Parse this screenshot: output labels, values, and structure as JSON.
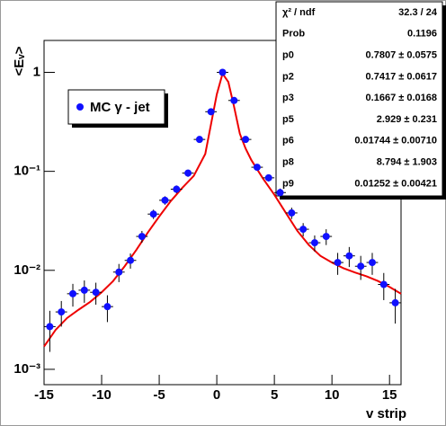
{
  "chart_data": {
    "type": "scatter",
    "xlabel": "v strip",
    "ylabel": "<Eᵥ>",
    "xlim": [
      -15,
      16
    ],
    "ylim": [
      0.0007,
      2.1
    ],
    "log_y": true,
    "xticks": [
      -15,
      -10,
      -5,
      0,
      5,
      10,
      15
    ],
    "yticks": [
      {
        "value": 0.001,
        "label": "10⁻³"
      },
      {
        "value": 0.01,
        "label": "10⁻²"
      },
      {
        "value": 0.1,
        "label": "10⁻¹"
      },
      1
    ],
    "series": [
      {
        "name": "MC γ - jet",
        "color": "#1010ff",
        "x": [
          -14.5,
          -13.5,
          -12.5,
          -11.5,
          -10.5,
          -9.5,
          -8.5,
          -7.5,
          -6.5,
          -5.5,
          -4.5,
          -3.5,
          -2.5,
          -1.5,
          -0.5,
          0.5,
          1.5,
          2.5,
          3.5,
          4.5,
          5.5,
          6.5,
          7.5,
          8.5,
          9.5,
          10.5,
          11.5,
          12.5,
          13.5,
          14.5,
          15.5
        ],
        "values": [
          0.0027,
          0.0038,
          0.0058,
          0.0063,
          0.006,
          0.0043,
          0.0096,
          0.0126,
          0.022,
          0.037,
          0.051,
          0.066,
          0.096,
          0.21,
          0.4,
          1.0,
          0.52,
          0.21,
          0.11,
          0.086,
          0.061,
          0.038,
          0.026,
          0.019,
          0.022,
          0.012,
          0.014,
          0.011,
          0.012,
          0.0072,
          0.0047
        ],
        "errors": [
          0.0012,
          0.0011,
          0.0015,
          0.0016,
          0.0015,
          0.0013,
          0.002,
          0.0022,
          0.003,
          0.004,
          0.005,
          0.006,
          0.008,
          0.012,
          0.02,
          0.03,
          0.025,
          0.012,
          0.008,
          0.007,
          0.006,
          0.005,
          0.004,
          0.0035,
          0.004,
          0.003,
          0.0032,
          0.003,
          0.003,
          0.0022,
          0.0018
        ]
      }
    ],
    "fit": {
      "color": "#ee0000",
      "x": [
        -15,
        -14,
        -13,
        -12,
        -11,
        -10,
        -9,
        -8,
        -7,
        -6,
        -5,
        -4,
        -3,
        -2,
        -1,
        -0.5,
        0,
        0.5,
        1,
        1.5,
        2,
        2.5,
        3,
        4,
        5,
        6,
        7,
        8,
        9,
        10,
        11,
        12,
        13,
        14,
        15,
        16
      ],
      "values": [
        0.0017,
        0.0025,
        0.0033,
        0.004,
        0.0048,
        0.006,
        0.0078,
        0.011,
        0.016,
        0.024,
        0.035,
        0.05,
        0.068,
        0.09,
        0.15,
        0.3,
        0.6,
        0.97,
        0.8,
        0.45,
        0.24,
        0.17,
        0.13,
        0.085,
        0.058,
        0.038,
        0.025,
        0.018,
        0.014,
        0.012,
        0.0105,
        0.0095,
        0.0087,
        0.0078,
        0.0068,
        0.0058
      ]
    },
    "stats": {
      "rows": [
        [
          "χ² / ndf",
          "32.3 / 24"
        ],
        [
          "Prob",
          "0.1196"
        ],
        [
          "p0",
          "0.7807 ± 0.0575"
        ],
        [
          "p2",
          "0.7417 ± 0.0617"
        ],
        [
          "p3",
          "0.1667 ± 0.0168"
        ],
        [
          "p5",
          "2.929 ± 0.231"
        ],
        [
          "p6",
          "0.01744 ± 0.00710"
        ],
        [
          "p8",
          "8.794 ± 1.903"
        ],
        [
          "p9",
          "0.01252 ± 0.00421"
        ]
      ]
    }
  }
}
